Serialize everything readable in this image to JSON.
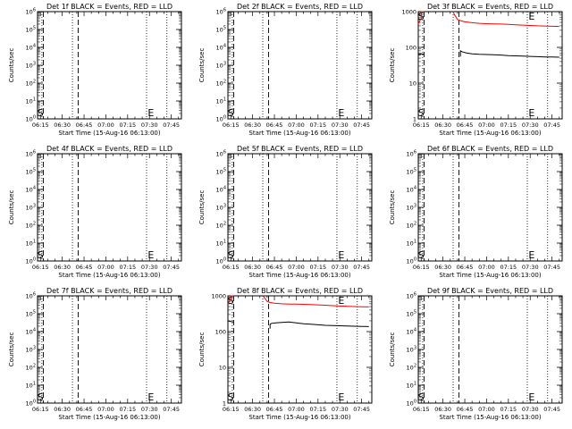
{
  "figure": {
    "x_tick_labels": [
      "06:15",
      "06:30",
      "06:45",
      "07:00",
      "07:15",
      "07:30",
      "07:45"
    ],
    "xlabel": "Start Time (15-Aug-16 06:13:00)",
    "ylabel": "Counts/sec",
    "marker_s": "S",
    "marker_e": "E",
    "colors": {
      "events": "#000000",
      "lld": "#ff0000"
    }
  },
  "chart_data": [
    {
      "type": "line",
      "title": "Det 1f BLACK = Events, RED = LLD",
      "xlabel": "Start Time (15-Aug-16 06:13:00)",
      "ylabel": "Counts/sec",
      "xlim": [
        "06:13",
        "07:52"
      ],
      "ylim": [
        1,
        1000000
      ],
      "y_scale": "log",
      "y_tick_labels": [
        "10^0",
        "10^1",
        "10^2",
        "10^3",
        "10^4",
        "10^5",
        "10^6"
      ],
      "dotted_lines_x": [
        "06:16",
        "06:37",
        "07:28",
        "07:42"
      ],
      "dashed_lines_x": [
        "06:17",
        "06:41"
      ],
      "marker_s_x": "06:15",
      "marker_e_x": "07:31",
      "series": []
    },
    {
      "type": "line",
      "title": "Det 2f BLACK = Events, RED = LLD",
      "xlabel": "Start Time (15-Aug-16 06:13:00)",
      "ylabel": "Counts/sec",
      "xlim": [
        "06:13",
        "07:52"
      ],
      "ylim": [
        1,
        1000000
      ],
      "y_scale": "log",
      "y_tick_labels": [
        "10^0",
        "10^1",
        "10^2",
        "10^3",
        "10^4",
        "10^5",
        "10^6"
      ],
      "dotted_lines_x": [
        "06:16",
        "06:37",
        "07:28",
        "07:42"
      ],
      "dashed_lines_x": [
        "06:17",
        "06:41"
      ],
      "marker_s_x": "06:15",
      "marker_e_x": "07:31",
      "series": []
    },
    {
      "type": "line",
      "title": "Det 3f BLACK = Events, RED = LLD",
      "xlabel": "Start Time (15-Aug-16 06:13:00)",
      "ylabel": "Counts/sec",
      "xlim": [
        "06:13",
        "07:52"
      ],
      "ylim": [
        1,
        1000
      ],
      "y_scale": "log",
      "y_tick_labels": [
        "1",
        "10",
        "100",
        "1000"
      ],
      "dotted_lines_x": [
        "06:16",
        "06:37",
        "07:28",
        "07:42"
      ],
      "dashed_lines_x": [
        "06:17",
        "06:41"
      ],
      "marker_s_x": "06:15",
      "marker_e_x": "07:31",
      "series": [
        {
          "color": "#000000",
          "segments": [
            {
              "x": [
                "06:13",
                "06:14",
                "06:15",
                "06:16",
                "06:17"
              ],
              "y": [
                65,
                64,
                66,
                65,
                64
              ]
            },
            {
              "x": [
                "06:42",
                "06:42",
                "06:43",
                "06:46",
                "06:50",
                "06:55",
                "07:00",
                "07:05",
                "07:10",
                "07:15",
                "07:20",
                "07:25",
                "07:30",
                "07:35",
                "07:40",
                "07:45",
                "07:50"
              ],
              "y": [
                55,
                80,
                76,
                70,
                66,
                64,
                63,
                62,
                61,
                59,
                58,
                57,
                56,
                55,
                54,
                54,
                53
              ]
            }
          ]
        },
        {
          "color": "#ff0000",
          "segments": [
            {
              "x": [
                "06:13",
                "06:14",
                "06:15",
                "06:15",
                "06:16",
                "06:17"
              ],
              "y": [
                450,
                550,
                650,
                1000,
                1000,
                1000
              ]
            },
            {
              "x": [
                "06:37",
                "06:38",
                "06:39",
                "06:40",
                "06:42",
                "06:45",
                "06:50",
                "06:55",
                "07:00",
                "07:05",
                "07:10",
                "07:15",
                "07:20",
                "07:25",
                "07:30",
                "07:35",
                "07:40",
                "07:45",
                "07:50"
              ],
              "y": [
                1000,
                800,
                700,
                600,
                560,
                520,
                490,
                470,
                460,
                455,
                450,
                440,
                430,
                420,
                410,
                400,
                395,
                390,
                385
              ]
            }
          ]
        }
      ]
    },
    {
      "type": "line",
      "title": "Det 4f BLACK = Events, RED = LLD",
      "xlabel": "Start Time (15-Aug-16 06:13:00)",
      "ylabel": "Counts/sec",
      "xlim": [
        "06:13",
        "07:52"
      ],
      "ylim": [
        1,
        1000000
      ],
      "y_scale": "log",
      "y_tick_labels": [
        "10^0",
        "10^1",
        "10^2",
        "10^3",
        "10^4",
        "10^5",
        "10^6"
      ],
      "dotted_lines_x": [
        "06:16",
        "06:37",
        "07:28",
        "07:42"
      ],
      "dashed_lines_x": [
        "06:17",
        "06:41"
      ],
      "marker_s_x": "06:15",
      "marker_e_x": "07:31",
      "series": []
    },
    {
      "type": "line",
      "title": "Det 5f BLACK = Events, RED = LLD",
      "xlabel": "Start Time (15-Aug-16 06:13:00)",
      "ylabel": "Counts/sec",
      "xlim": [
        "06:13",
        "07:52"
      ],
      "ylim": [
        1,
        1000000
      ],
      "y_scale": "log",
      "y_tick_labels": [
        "10^0",
        "10^1",
        "10^2",
        "10^3",
        "10^4",
        "10^5",
        "10^6"
      ],
      "dotted_lines_x": [
        "06:16",
        "06:37",
        "07:28",
        "07:42"
      ],
      "dashed_lines_x": [
        "06:17",
        "06:41"
      ],
      "marker_s_x": "06:15",
      "marker_e_x": "07:31",
      "series": []
    },
    {
      "type": "line",
      "title": "Det 6f BLACK = Events, RED = LLD",
      "xlabel": "Start Time (15-Aug-16 06:13:00)",
      "ylabel": "Counts/sec",
      "xlim": [
        "06:13",
        "07:52"
      ],
      "ylim": [
        1,
        1000000
      ],
      "y_scale": "log",
      "y_tick_labels": [
        "10^0",
        "10^1",
        "10^2",
        "10^3",
        "10^4",
        "10^5",
        "10^6"
      ],
      "dotted_lines_x": [
        "06:16",
        "06:37",
        "07:28",
        "07:42"
      ],
      "dashed_lines_x": [
        "06:17",
        "06:41"
      ],
      "marker_s_x": "06:15",
      "marker_e_x": "07:31",
      "series": []
    },
    {
      "type": "line",
      "title": "Det 7f BLACK = Events, RED = LLD",
      "xlabel": "Start Time (15-Aug-16 06:13:00)",
      "ylabel": "Counts/sec",
      "xlim": [
        "06:13",
        "07:52"
      ],
      "ylim": [
        1,
        1000000
      ],
      "y_scale": "log",
      "y_tick_labels": [
        "10^0",
        "10^1",
        "10^2",
        "10^3",
        "10^4",
        "10^5",
        "10^6"
      ],
      "dotted_lines_x": [
        "06:16",
        "06:37",
        "07:28",
        "07:42"
      ],
      "dashed_lines_x": [
        "06:17",
        "06:41"
      ],
      "marker_s_x": "06:15",
      "marker_e_x": "07:31",
      "series": []
    },
    {
      "type": "line",
      "title": "Det 8f BLACK = Events, RED = LLD",
      "xlabel": "Start Time (15-Aug-16 06:13:00)",
      "ylabel": "Counts/sec",
      "xlim": [
        "06:13",
        "07:52"
      ],
      "ylim": [
        1,
        1000
      ],
      "y_scale": "log",
      "y_tick_labels": [
        "1",
        "10",
        "100",
        "1000"
      ],
      "dotted_lines_x": [
        "06:16",
        "06:37",
        "07:28",
        "07:42"
      ],
      "dashed_lines_x": [
        "06:17",
        "06:41"
      ],
      "marker_s_x": "06:15",
      "marker_e_x": "07:31",
      "series": [
        {
          "color": "#000000",
          "segments": [
            {
              "x": [
                "06:13",
                "06:14",
                "06:15",
                "06:16",
                "06:17"
              ],
              "y": [
                200,
                195,
                190,
                188,
                185
              ]
            },
            {
              "x": [
                "06:42",
                "06:42",
                "06:43",
                "06:46",
                "06:50",
                "06:55",
                "07:00",
                "07:05",
                "07:10",
                "07:15",
                "07:20",
                "07:25",
                "07:30",
                "07:35",
                "07:40",
                "07:45",
                "07:50"
              ],
              "y": [
                120,
                160,
                170,
                175,
                180,
                185,
                175,
                165,
                160,
                155,
                150,
                148,
                145,
                143,
                141,
                140,
                138
              ]
            }
          ]
        },
        {
          "color": "#ff0000",
          "segments": [
            {
              "x": [
                "06:13",
                "06:14",
                "06:15",
                "06:15",
                "06:16",
                "06:17"
              ],
              "y": [
                600,
                700,
                800,
                1000,
                1000,
                1000
              ]
            },
            {
              "x": [
                "06:37",
                "06:38",
                "06:39",
                "06:40",
                "06:42",
                "06:45",
                "06:50",
                "06:55",
                "07:00",
                "07:05",
                "07:10",
                "07:15",
                "07:20",
                "07:25",
                "07:30",
                "07:35",
                "07:40",
                "07:45",
                "07:50"
              ],
              "y": [
                1000,
                900,
                800,
                700,
                650,
                620,
                600,
                590,
                585,
                580,
                570,
                560,
                545,
                530,
                520,
                510,
                500,
                495,
                490
              ]
            }
          ]
        }
      ]
    },
    {
      "type": "line",
      "title": "Det 9f BLACK = Events, RED = LLD",
      "xlabel": "Start Time (15-Aug-16 06:13:00)",
      "ylabel": "Counts/sec",
      "xlim": [
        "06:13",
        "07:52"
      ],
      "ylim": [
        1,
        1000000
      ],
      "y_scale": "log",
      "y_tick_labels": [
        "10^0",
        "10^1",
        "10^2",
        "10^3",
        "10^4",
        "10^5",
        "10^6"
      ],
      "dotted_lines_x": [
        "06:16",
        "06:37",
        "07:28",
        "07:42"
      ],
      "dashed_lines_x": [
        "06:17",
        "06:41"
      ],
      "marker_s_x": "06:15",
      "marker_e_x": "07:31",
      "series": []
    }
  ]
}
